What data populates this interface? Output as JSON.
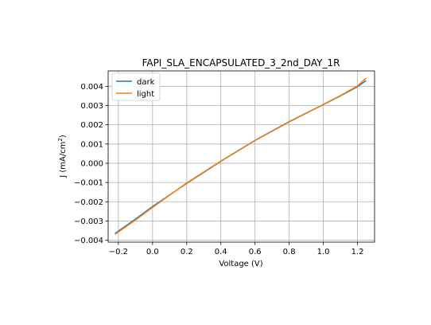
{
  "chart_data": {
    "type": "line",
    "title": "FAPI_SLA_ENCAPSULATED_3_2nd_DAY_1R",
    "xlabel": "Voltage (V)",
    "ylabel_main": "J (mA/cm",
    "ylabel_sup": "2",
    "ylabel_tail": ")",
    "xlim": [
      -0.26,
      1.3
    ],
    "ylim": [
      -0.0041,
      0.0048
    ],
    "grid": true,
    "legend_position": "upper-left",
    "x_ticks": [
      -0.2,
      0.0,
      0.2,
      0.4,
      0.6,
      0.8,
      1.0,
      1.2
    ],
    "x_tick_labels": [
      "−0.2",
      "0.0",
      "0.2",
      "0.4",
      "0.6",
      "0.8",
      "1.0",
      "1.2"
    ],
    "y_ticks": [
      -0.004,
      -0.003,
      -0.002,
      -0.001,
      0.0,
      0.001,
      0.002,
      0.003,
      0.004
    ],
    "y_tick_labels": [
      "−0.004",
      "−0.003",
      "−0.002",
      "−0.001",
      "0.000",
      "0.001",
      "0.002",
      "0.003",
      "0.004"
    ],
    "series": [
      {
        "name": "dark",
        "color": "#1f77b4",
        "x": [
          -0.22,
          -0.1,
          0.0,
          0.2,
          0.4,
          0.6,
          0.8,
          1.0,
          1.1,
          1.2,
          1.25
        ],
        "y": [
          -0.00365,
          -0.0029,
          -0.00225,
          -0.00105,
          0.0001,
          0.00118,
          0.00215,
          0.00305,
          0.0035,
          0.00398,
          0.0043
        ]
      },
      {
        "name": "light",
        "color": "#ff7f0e",
        "x": [
          -0.22,
          -0.1,
          0.0,
          0.2,
          0.4,
          0.6,
          0.8,
          1.0,
          1.1,
          1.2,
          1.25
        ],
        "y": [
          -0.0037,
          -0.00295,
          -0.0023,
          -0.00102,
          0.00012,
          0.0012,
          0.00217,
          0.00306,
          0.00352,
          0.00402,
          0.00443
        ]
      }
    ]
  }
}
